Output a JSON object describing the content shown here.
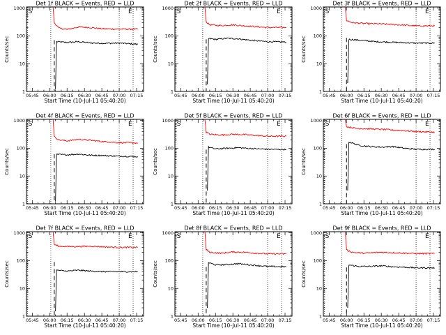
{
  "colors": {
    "events": "#000000",
    "lld": "#ff0000",
    "background": "#ffffff"
  },
  "axis_labels": {
    "y": "Counts/sec",
    "x": "Start Time (10-Jul-11 05:40:20)"
  },
  "chart_data": [
    {
      "type": "line",
      "title": "Det 1f BLACK = Events, RED = LLD",
      "marker_left": "S",
      "marker_right": "E",
      "xlabel": "Start Time (10-Jul-11 05:40:20)",
      "ylabel": "Counts/sec",
      "x_ticks": [
        "05:45",
        "06:00",
        "06:15",
        "06:30",
        "06:45",
        "07:00",
        "07:15"
      ],
      "y_ticks": [
        "1",
        "10",
        "100",
        "1000"
      ],
      "ylim": [
        1,
        1100
      ],
      "yscale": "log",
      "xlim": [
        "05:40",
        "07:21"
      ],
      "vlines": [
        "05:41",
        "06:01",
        "07:00",
        "07:12"
      ],
      "dashed_drop": "06:04",
      "series": [
        {
          "name": "Events",
          "color": "#000000",
          "points": [
            [
              "06:05",
              1.2
            ],
            [
              "06:06",
              62
            ],
            [
              "06:15",
              58
            ],
            [
              "06:25",
              62
            ],
            [
              "06:35",
              56
            ],
            [
              "06:45",
              54
            ],
            [
              "07:00",
              55
            ],
            [
              "07:16",
              50
            ]
          ]
        },
        {
          "name": "LLD",
          "color": "#ff0000",
          "points": [
            [
              "06:03",
              1000
            ],
            [
              "06:04",
              300
            ],
            [
              "06:08",
              190
            ],
            [
              "06:15",
              170
            ],
            [
              "06:25",
              210
            ],
            [
              "06:35",
              200
            ],
            [
              "06:45",
              180
            ],
            [
              "07:00",
              175
            ],
            [
              "07:16",
              175
            ]
          ]
        }
      ]
    },
    {
      "type": "line",
      "title": "Det 2f BLACK = Events, RED = LLD",
      "marker_left": "S",
      "marker_right": "E",
      "xlabel": "Start Time (10-Jul-11 05:40:20)",
      "ylabel": "Counts/sec",
      "x_ticks": [
        "05:45",
        "06:00",
        "06:15",
        "06:30",
        "06:45",
        "07:00",
        "07:15"
      ],
      "y_ticks": [
        "1",
        "10",
        "100",
        "1000"
      ],
      "ylim": [
        1,
        1100
      ],
      "yscale": "log",
      "xlim": [
        "05:40",
        "07:21"
      ],
      "vlines": [
        "05:41",
        "06:04",
        "07:00",
        "07:12"
      ],
      "dashed_drop": "06:07",
      "series": [
        {
          "name": "Events",
          "color": "#000000",
          "points": [
            [
              "06:08",
              1.8
            ],
            [
              "06:09",
              80
            ],
            [
              "06:15",
              75
            ],
            [
              "06:25",
              82
            ],
            [
              "06:35",
              78
            ],
            [
              "06:45",
              70
            ],
            [
              "07:00",
              62
            ],
            [
              "07:16",
              60
            ]
          ]
        },
        {
          "name": "LLD",
          "color": "#ff0000",
          "points": [
            [
              "06:06",
              1000
            ],
            [
              "06:07",
              320
            ],
            [
              "06:10",
              250
            ],
            [
              "06:20",
              235
            ],
            [
              "06:30",
              250
            ],
            [
              "06:40",
              230
            ],
            [
              "06:50",
              215
            ],
            [
              "07:00",
              200
            ],
            [
              "07:16",
              200
            ]
          ]
        }
      ]
    },
    {
      "type": "line",
      "title": "Det 3f BLACK = Events, RED = LLD",
      "marker_left": "S",
      "marker_right": "E",
      "xlabel": "Start Time (10-Jul-11 05:40:20)",
      "ylabel": "Counts/sec",
      "x_ticks": [
        "05:45",
        "06:00",
        "06:15",
        "06:30",
        "06:45",
        "07:00",
        "07:15"
      ],
      "y_ticks": [
        "1",
        "10",
        "100",
        "1000"
      ],
      "ylim": [
        1,
        1100
      ],
      "yscale": "log",
      "xlim": [
        "05:40",
        "07:21"
      ],
      "vlines": [
        "05:41",
        "05:56",
        "07:00",
        "07:12"
      ],
      "dashed_drop": "06:00",
      "series": [
        {
          "name": "Events",
          "color": "#000000",
          "points": [
            [
              "06:01",
              2.0
            ],
            [
              "06:02",
              75
            ],
            [
              "06:15",
              68
            ],
            [
              "06:25",
              62
            ],
            [
              "06:35",
              60
            ],
            [
              "06:45",
              58
            ],
            [
              "07:00",
              55
            ],
            [
              "07:16",
              55
            ]
          ]
        },
        {
          "name": "LLD",
          "color": "#ff0000",
          "points": [
            [
              "05:59",
              1000
            ],
            [
              "06:00",
              360
            ],
            [
              "06:05",
              300
            ],
            [
              "06:15",
              280
            ],
            [
              "06:30",
              270
            ],
            [
              "06:45",
              250
            ],
            [
              "07:00",
              230
            ],
            [
              "07:16",
              230
            ]
          ]
        }
      ]
    },
    {
      "type": "line",
      "title": "Det 4f BLACK = Events, RED = LLD",
      "marker_left": "S",
      "marker_right": "E",
      "xlabel": "Start Time (10-Jul-11 05:40:20)",
      "ylabel": "Counts/sec",
      "x_ticks": [
        "05:45",
        "06:00",
        "06:15",
        "06:30",
        "06:45",
        "07:00",
        "07:15"
      ],
      "y_ticks": [
        "1",
        "10",
        "100",
        "1000"
      ],
      "ylim": [
        1,
        1100
      ],
      "yscale": "log",
      "xlim": [
        "05:40",
        "07:21"
      ],
      "vlines": [
        "05:41",
        "06:01",
        "07:00",
        "07:12"
      ],
      "dashed_drop": "06:04",
      "series": [
        {
          "name": "Events",
          "color": "#000000",
          "points": [
            [
              "06:05",
              1.2
            ],
            [
              "06:06",
              60
            ],
            [
              "06:15",
              58
            ],
            [
              "06:25",
              62
            ],
            [
              "06:35",
              56
            ],
            [
              "06:45",
              55
            ],
            [
              "07:00",
              52
            ],
            [
              "07:16",
              50
            ]
          ]
        },
        {
          "name": "LLD",
          "color": "#ff0000",
          "points": [
            [
              "06:03",
              1000
            ],
            [
              "06:04",
              260
            ],
            [
              "06:08",
              200
            ],
            [
              "06:15",
              185
            ],
            [
              "06:25",
              210
            ],
            [
              "06:35",
              195
            ],
            [
              "06:45",
              175
            ],
            [
              "07:00",
              160
            ],
            [
              "07:16",
              155
            ]
          ]
        }
      ]
    },
    {
      "type": "line",
      "title": "Det 5f BLACK = Events, RED = LLD",
      "marker_left": "S",
      "marker_right": "E",
      "xlabel": "Start Time (10-Jul-11 05:40:20)",
      "ylabel": "Counts/sec",
      "x_ticks": [
        "05:45",
        "06:00",
        "06:15",
        "06:30",
        "06:45",
        "07:00",
        "07:15"
      ],
      "y_ticks": [
        "1",
        "10",
        "100",
        "1000"
      ],
      "ylim": [
        1,
        1100
      ],
      "yscale": "log",
      "xlim": [
        "05:40",
        "07:21"
      ],
      "vlines": [
        "05:41",
        "06:04",
        "07:00",
        "07:12"
      ],
      "dashed_drop": "06:07",
      "series": [
        {
          "name": "Events",
          "color": "#000000",
          "points": [
            [
              "06:08",
              3.0
            ],
            [
              "06:09",
              110
            ],
            [
              "06:15",
              95
            ],
            [
              "06:25",
              100
            ],
            [
              "06:35",
              105
            ],
            [
              "06:45",
              98
            ],
            [
              "07:00",
              92
            ],
            [
              "07:16",
              90
            ]
          ]
        },
        {
          "name": "LLD",
          "color": "#ff0000",
          "points": [
            [
              "06:06",
              1000
            ],
            [
              "06:07",
              380
            ],
            [
              "06:10",
              320
            ],
            [
              "06:20",
              300
            ],
            [
              "06:30",
              320
            ],
            [
              "06:40",
              310
            ],
            [
              "06:50",
              290
            ],
            [
              "07:00",
              270
            ],
            [
              "07:16",
              270
            ]
          ]
        }
      ]
    },
    {
      "type": "line",
      "title": "Det 6f BLACK = Events, RED = LLD",
      "marker_left": "S",
      "marker_right": "E",
      "xlabel": "Start Time (10-Jul-11 05:40:20)",
      "ylabel": "Counts/sec",
      "x_ticks": [
        "05:45",
        "06:00",
        "06:15",
        "06:30",
        "06:45",
        "07:00",
        "07:15"
      ],
      "y_ticks": [
        "1",
        "10",
        "100",
        "1000"
      ],
      "ylim": [
        1,
        1100
      ],
      "yscale": "log",
      "xlim": [
        "05:40",
        "07:21"
      ],
      "vlines": [
        "05:41",
        "05:56",
        "07:00",
        "07:12"
      ],
      "dashed_drop": "06:00",
      "series": [
        {
          "name": "Events",
          "color": "#000000",
          "points": [
            [
              "06:01",
              3.0
            ],
            [
              "06:02",
              170
            ],
            [
              "06:10",
              130
            ],
            [
              "06:20",
              115
            ],
            [
              "06:30",
              110
            ],
            [
              "06:40",
              115
            ],
            [
              "06:50",
              100
            ],
            [
              "07:00",
              92
            ],
            [
              "07:16",
              92
            ]
          ]
        },
        {
          "name": "LLD",
          "color": "#ff0000",
          "points": [
            [
              "05:59",
              1000
            ],
            [
              "06:00",
              600
            ],
            [
              "06:08",
              520
            ],
            [
              "06:20",
              500
            ],
            [
              "06:35",
              470
            ],
            [
              "06:50",
              430
            ],
            [
              "07:00",
              400
            ],
            [
              "07:16",
              380
            ]
          ]
        }
      ]
    },
    {
      "type": "line",
      "title": "Det 7f BLACK = Events, RED = LLD",
      "marker_left": "S",
      "marker_right": "E",
      "xlabel": "Start Time (10-Jul-11 05:40:20)",
      "ylabel": "Counts/sec",
      "x_ticks": [
        "05:45",
        "06:00",
        "06:15",
        "06:30",
        "06:45",
        "07:00",
        "07:15"
      ],
      "y_ticks": [
        "1",
        "10",
        "100",
        "1000"
      ],
      "ylim": [
        1,
        1100
      ],
      "yscale": "log",
      "xlim": [
        "05:40",
        "07:21"
      ],
      "vlines": [
        "05:41",
        "06:01",
        "07:00",
        "07:12"
      ],
      "dashed_drop": "06:04",
      "series": [
        {
          "name": "Events",
          "color": "#000000",
          "points": [
            [
              "06:05",
              1.5
            ],
            [
              "06:06",
              45
            ],
            [
              "06:15",
              42
            ],
            [
              "06:25",
              45
            ],
            [
              "06:35",
              42
            ],
            [
              "06:45",
              40
            ],
            [
              "07:00",
              40
            ],
            [
              "07:16",
              40
            ]
          ]
        },
        {
          "name": "LLD",
          "color": "#ff0000",
          "points": [
            [
              "06:03",
              1000
            ],
            [
              "06:04",
              380
            ],
            [
              "06:08",
              330
            ],
            [
              "06:20",
              320
            ],
            [
              "06:35",
              330
            ],
            [
              "06:50",
              310
            ],
            [
              "07:00",
              300
            ],
            [
              "07:16",
              300
            ]
          ]
        }
      ]
    },
    {
      "type": "line",
      "title": "Det 8f BLACK = Events, RED = LLD",
      "marker_left": "S",
      "marker_right": "E",
      "xlabel": "Start Time (10-Jul-11 05:40:20)",
      "ylabel": "Counts/sec",
      "x_ticks": [
        "05:45",
        "06:00",
        "06:15",
        "06:30",
        "06:45",
        "07:00",
        "07:15"
      ],
      "y_ticks": [
        "1",
        "10",
        "100",
        "1000"
      ],
      "ylim": [
        1,
        1100
      ],
      "yscale": "log",
      "xlim": [
        "05:40",
        "07:21"
      ],
      "vlines": [
        "05:41",
        "06:04",
        "07:00",
        "07:12"
      ],
      "dashed_drop": "06:07",
      "series": [
        {
          "name": "Events",
          "color": "#000000",
          "points": [
            [
              "06:08",
              2.0
            ],
            [
              "06:09",
              85
            ],
            [
              "06:15",
              70
            ],
            [
              "06:25",
              72
            ],
            [
              "06:35",
              78
            ],
            [
              "06:45",
              70
            ],
            [
              "07:00",
              62
            ],
            [
              "07:16",
              60
            ]
          ]
        },
        {
          "name": "LLD",
          "color": "#ff0000",
          "points": [
            [
              "06:06",
              1000
            ],
            [
              "06:07",
              250
            ],
            [
              "06:10",
              200
            ],
            [
              "06:20",
              185
            ],
            [
              "06:30",
              205
            ],
            [
              "06:40",
              200
            ],
            [
              "06:50",
              185
            ],
            [
              "07:00",
              175
            ],
            [
              "07:16",
              175
            ]
          ]
        }
      ]
    },
    {
      "type": "line",
      "title": "Det 9f BLACK = Events, RED = LLD",
      "marker_left": "S",
      "marker_right": "E",
      "xlabel": "Start Time (10-Jul-11 05:40:20)",
      "ylabel": "Counts/sec",
      "x_ticks": [
        "05:45",
        "06:00",
        "06:15",
        "06:30",
        "06:45",
        "07:00",
        "07:15"
      ],
      "y_ticks": [
        "1",
        "10",
        "100",
        "1000"
      ],
      "ylim": [
        1,
        1100
      ],
      "yscale": "log",
      "xlim": [
        "05:40",
        "07:21"
      ],
      "vlines": [
        "05:41",
        "05:56",
        "07:00",
        "07:12"
      ],
      "dashed_drop": "06:00",
      "series": [
        {
          "name": "Events",
          "color": "#000000",
          "points": [
            [
              "06:01",
              2.0
            ],
            [
              "06:02",
              70
            ],
            [
              "06:10",
              62
            ],
            [
              "06:20",
              62
            ],
            [
              "06:30",
              65
            ],
            [
              "06:40",
              60
            ],
            [
              "06:50",
              58
            ],
            [
              "07:00",
              55
            ],
            [
              "07:16",
              55
            ]
          ]
        },
        {
          "name": "LLD",
          "color": "#ff0000",
          "points": [
            [
              "05:59",
              1000
            ],
            [
              "06:00",
              240
            ],
            [
              "06:05",
              200
            ],
            [
              "06:15",
              185
            ],
            [
              "06:30",
              200
            ],
            [
              "06:45",
              190
            ],
            [
              "07:00",
              180
            ],
            [
              "07:16",
              180
            ]
          ]
        }
      ]
    }
  ]
}
